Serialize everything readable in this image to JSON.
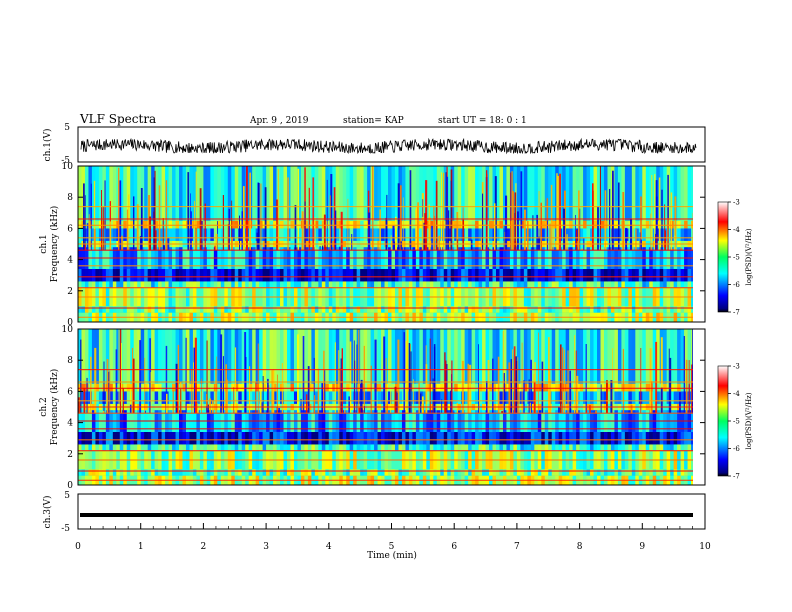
{
  "header": {
    "title": "VLF Spectra",
    "date": "Apr. 9 , 2019",
    "station": "station= KAP",
    "start": "start UT = 18: 0 : 1"
  },
  "chart_data": [
    {
      "type": "line",
      "ylabel": "ch.1(V)",
      "ylim": [
        -5,
        5
      ],
      "yticks": [
        "5",
        "-5"
      ],
      "x_range": [
        0,
        10
      ],
      "description_of_series": "noisy waveform oscillating roughly between -2 and 1 V",
      "amplitude_range": [
        -2,
        1
      ]
    },
    {
      "type": "heatmap",
      "ylabel_line1": "ch.1",
      "ylabel_line2": "Frequency (kHz)",
      "ylim": [
        0,
        10
      ],
      "yticks": [
        "0",
        "2",
        "4",
        "6",
        "8",
        "10"
      ],
      "colorbar": {
        "label": "log(PSD)(V²/Hz)",
        "range": [
          -7,
          -3
        ],
        "ticks": [
          "-3",
          "-4",
          "-5",
          "-6",
          "-7"
        ]
      }
    },
    {
      "type": "heatmap",
      "ylabel_line1": "ch.2",
      "ylabel_line2": "Frequency (kHz)",
      "ylim": [
        0,
        10
      ],
      "yticks": [
        "0",
        "2",
        "4",
        "6",
        "8",
        "10"
      ],
      "colorbar": {
        "label": "log(PSD)(V²/Hz)",
        "range": [
          -7,
          -3
        ],
        "ticks": [
          "-3",
          "-4",
          "-5",
          "-6",
          "-7"
        ]
      }
    },
    {
      "type": "line",
      "ylabel": "ch.3(V)",
      "ylim": [
        -5,
        5
      ],
      "yticks": [
        "5",
        "-5"
      ],
      "constant_value": -1,
      "xlabel": "Time (min)",
      "xlim": [
        0,
        10
      ],
      "xticks": [
        "0",
        "1",
        "2",
        "3",
        "4",
        "5",
        "6",
        "7",
        "8",
        "9",
        "10"
      ]
    }
  ]
}
